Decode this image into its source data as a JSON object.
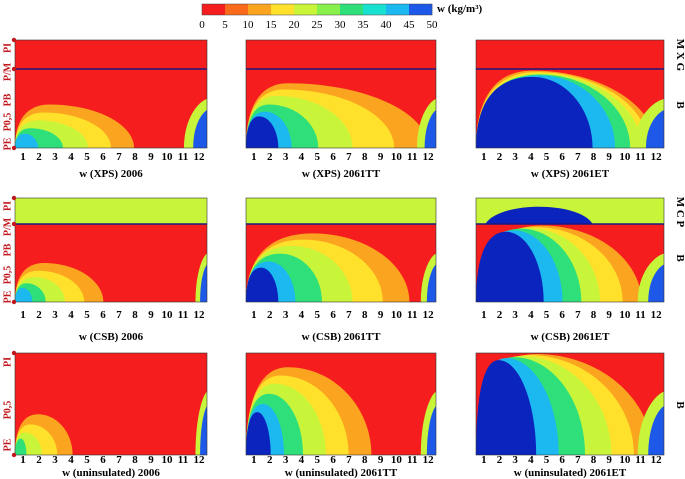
{
  "chart_data": {
    "type": "heatmap",
    "legend": {
      "title": "w (kg/m³)",
      "ticks": [
        "0",
        "5",
        "10",
        "15",
        "20",
        "25",
        "30",
        "35",
        "40",
        "45",
        "50"
      ],
      "colors": [
        "#f51d1d",
        "#f96a1a",
        "#fba420",
        "#ffe12b",
        "#c8f53a",
        "#88f04a",
        "#2fe07a",
        "#19e1d0",
        "#1cb8f0",
        "#1d58e8",
        "#0a24bd"
      ]
    },
    "month_ticks": [
      "1",
      "2",
      "3",
      "4",
      "5",
      "6",
      "7",
      "8",
      "9",
      "10",
      "11",
      "12"
    ],
    "y_labels": {
      "pi": "PI",
      "pm": "P/M",
      "pb": "PB",
      "p05": "P0,5",
      "pe": "PE"
    },
    "row_layers": [
      {
        "top": "M X G",
        "bottom": "B"
      },
      {
        "top": "M C P",
        "bottom": "B"
      },
      {
        "top": "",
        "bottom": "B"
      }
    ],
    "panels": [
      {
        "title": "w (XPS) 2006",
        "row": 0,
        "col": 0
      },
      {
        "title": "w (XPS) 2061TT",
        "row": 0,
        "col": 1
      },
      {
        "title": "w (XPS) 2061ET",
        "row": 0,
        "col": 2
      },
      {
        "title": "w (CSB) 2006",
        "row": 1,
        "col": 0
      },
      {
        "title": "w (CSB) 2061TT",
        "row": 1,
        "col": 1
      },
      {
        "title": "w (CSB) 2061ET",
        "row": 1,
        "col": 2
      },
      {
        "title": "w (uninsulated) 2006",
        "row": 2,
        "col": 0
      },
      {
        "title": "w (uninsulated) 2061TT",
        "row": 2,
        "col": 1
      },
      {
        "title": "w (uninsulated) 2061ET",
        "row": 2,
        "col": 2
      }
    ],
    "colors": {
      "label_red": "#c0161c",
      "divider": "#1a1a80"
    }
  }
}
